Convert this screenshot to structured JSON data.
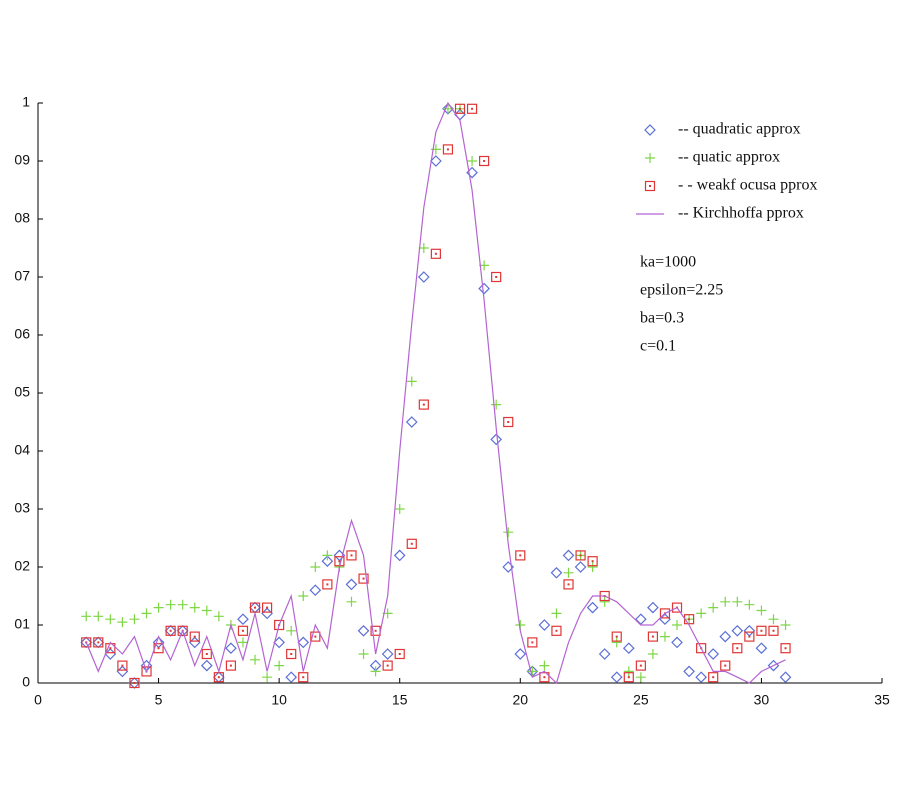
{
  "chart_data": {
    "type": "scatter",
    "x": [
      2,
      2.5,
      3,
      3.5,
      4,
      4.5,
      5,
      5.5,
      6,
      6.5,
      7,
      7.5,
      8,
      8.5,
      9,
      9.5,
      10,
      10.5,
      11,
      11.5,
      12,
      12.5,
      13,
      13.5,
      14,
      14.5,
      15,
      15.5,
      16,
      16.5,
      17,
      17.5,
      18,
      18.5,
      19,
      19.5,
      20,
      20.5,
      21,
      21.5,
      22,
      22.5,
      23,
      23.5,
      24,
      24.5,
      25,
      25.5,
      26,
      26.5,
      27,
      27.5,
      28,
      28.5,
      29,
      29.5,
      30,
      30.5,
      31
    ],
    "series": [
      {
        "name": "-- quadratic approx",
        "color": "#5b6fd6",
        "marker": "diamond",
        "values": [
          0.07,
          0.07,
          0.05,
          0.02,
          0.0,
          0.03,
          0.07,
          0.09,
          0.09,
          0.07,
          0.03,
          0.01,
          0.06,
          0.11,
          0.13,
          0.12,
          0.07,
          0.01,
          0.07,
          0.16,
          0.21,
          0.22,
          0.17,
          0.09,
          0.03,
          0.05,
          0.22,
          0.45,
          0.7,
          0.9,
          0.99,
          0.98,
          0.88,
          0.68,
          0.42,
          0.2,
          0.05,
          0.02,
          0.1,
          0.19,
          0.22,
          0.2,
          0.13,
          0.05,
          0.01,
          0.06,
          0.11,
          0.13,
          0.11,
          0.07,
          0.02,
          0.01,
          0.05,
          0.08,
          0.09,
          0.09,
          0.06,
          0.03,
          0.01
        ]
      },
      {
        "name": "-- quatic approx",
        "color": "#7ed646",
        "marker": "plus",
        "values": [
          0.115,
          0.115,
          0.11,
          0.105,
          0.11,
          0.12,
          0.13,
          0.135,
          0.135,
          0.13,
          0.125,
          0.115,
          0.1,
          0.07,
          0.04,
          0.01,
          0.03,
          0.09,
          0.15,
          0.2,
          0.22,
          0.2,
          0.14,
          0.05,
          0.02,
          0.12,
          0.3,
          0.52,
          0.75,
          0.92,
          0.99,
          0.99,
          0.9,
          0.72,
          0.48,
          0.26,
          0.1,
          0.02,
          0.03,
          0.12,
          0.19,
          0.22,
          0.2,
          0.14,
          0.07,
          0.02,
          0.01,
          0.05,
          0.08,
          0.1,
          0.11,
          0.12,
          0.13,
          0.14,
          0.14,
          0.135,
          0.125,
          0.11,
          0.1
        ]
      },
      {
        "name": "- - weakf ocusa pprox",
        "color": "#e03535",
        "marker": "square",
        "values": [
          0.07,
          0.07,
          0.06,
          0.03,
          0.0,
          0.02,
          0.06,
          0.09,
          0.09,
          0.08,
          0.05,
          0.01,
          0.03,
          0.09,
          0.13,
          0.13,
          0.1,
          0.05,
          0.01,
          0.08,
          0.17,
          0.21,
          0.22,
          0.18,
          0.09,
          0.03,
          0.05,
          0.24,
          0.48,
          0.74,
          0.92,
          0.99,
          0.99,
          0.9,
          0.7,
          0.45,
          0.22,
          0.07,
          0.01,
          0.09,
          0.17,
          0.22,
          0.21,
          0.15,
          0.08,
          0.01,
          0.03,
          0.08,
          0.12,
          0.13,
          0.11,
          0.06,
          0.01,
          0.03,
          0.06,
          0.08,
          0.09,
          0.09,
          0.06
        ]
      },
      {
        "name": "-- Kirchhoffa pprox",
        "color": "#b464d2",
        "marker": "line",
        "values": [
          0.07,
          0.02,
          0.07,
          0.05,
          0.08,
          0.02,
          0.08,
          0.04,
          0.09,
          0.03,
          0.08,
          0.02,
          0.1,
          0.04,
          0.12,
          0.02,
          0.1,
          0.15,
          0.02,
          0.1,
          0.06,
          0.2,
          0.28,
          0.22,
          0.05,
          0.15,
          0.4,
          0.62,
          0.82,
          0.95,
          1.0,
          0.97,
          0.85,
          0.66,
          0.44,
          0.24,
          0.09,
          0.01,
          0.02,
          0.0,
          0.07,
          0.12,
          0.15,
          0.15,
          0.14,
          0.12,
          0.1,
          0.1,
          0.12,
          0.13,
          0.1,
          0.06,
          0.02,
          0.02,
          0.01,
          0.0,
          0.02,
          0.03,
          0.04
        ]
      }
    ],
    "annotations": [
      "ka=1000",
      "epsilon=2.25",
      "ba=0.3",
      "c=0.1"
    ],
    "xlim": [
      0,
      35
    ],
    "xticks": [
      0,
      5,
      10,
      15,
      20,
      25,
      30,
      35
    ],
    "ylim": [
      0,
      1
    ],
    "yticks": [
      0,
      {
        "value": 0.1,
        "label": "01"
      },
      {
        "value": 0.2,
        "label": "02"
      },
      {
        "value": 0.3,
        "label": "03"
      },
      {
        "value": 0.4,
        "label": "04"
      },
      {
        "value": 0.5,
        "label": "05"
      },
      {
        "value": 0.6,
        "label": "06"
      },
      {
        "value": 0.7,
        "label": "07"
      },
      {
        "value": 0.8,
        "label": "08"
      },
      {
        "value": 0.9,
        "label": "09"
      },
      1
    ]
  }
}
